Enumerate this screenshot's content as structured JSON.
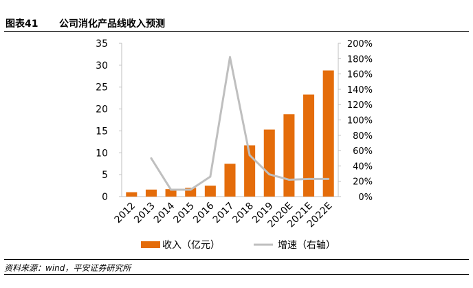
{
  "header": {
    "figure_number": "图表41",
    "title": "公司消化产品线收入预测"
  },
  "source": "资料来源：wind，平安证券研究所",
  "chart_data": {
    "type": "bar",
    "categories": [
      "2012",
      "2013",
      "2014",
      "2015",
      "2016",
      "2017",
      "2018",
      "2019",
      "2020E",
      "2021E",
      "2022E"
    ],
    "series": [
      {
        "name": "收入（亿元）",
        "type": "bar",
        "axis": "left",
        "color": "#E46C0A",
        "values": [
          1.0,
          1.6,
          1.7,
          2.0,
          2.5,
          7.5,
          11.7,
          15.3,
          18.8,
          23.3,
          28.8
        ]
      },
      {
        "name": "增速（右轴）",
        "type": "line",
        "axis": "right",
        "color": "#BFBFBF",
        "values": [
          null,
          0.5,
          0.09,
          0.09,
          0.26,
          1.82,
          0.54,
          0.29,
          0.22,
          0.23,
          0.23
        ]
      }
    ],
    "y_left": {
      "min": 0,
      "max": 35,
      "ticks": [
        "0",
        "5",
        "10",
        "15",
        "20",
        "25",
        "30",
        "35"
      ]
    },
    "y_right": {
      "min": 0,
      "max": 2.0,
      "ticks": [
        "0%",
        "20%",
        "40%",
        "60%",
        "80%",
        "100%",
        "120%",
        "140%",
        "160%",
        "180%",
        "200%"
      ]
    },
    "legend_position": "bottom",
    "grid": false
  }
}
